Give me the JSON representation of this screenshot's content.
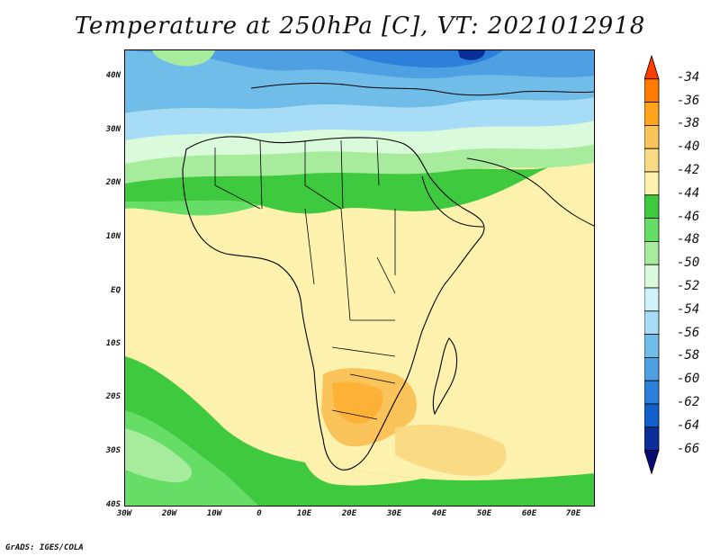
{
  "title": "Temperature at 250hPa [C], VT: 2021012918",
  "credit": "GrADS: IGES/COLA",
  "y_axis_labels": [
    "40N",
    "30N",
    "20N",
    "10N",
    "EQ",
    "10S",
    "20S",
    "30S",
    "40S"
  ],
  "x_axis_labels": [
    "30W",
    "20W",
    "10W",
    "0",
    "10E",
    "20E",
    "30E",
    "40E",
    "50E",
    "60E",
    "70E"
  ],
  "colorbar": {
    "labels": [
      "-34",
      "-36",
      "-38",
      "-40",
      "-42",
      "-44",
      "-46",
      "-48",
      "-50",
      "-52",
      "-54",
      "-56",
      "-58",
      "-60",
      "-62",
      "-64",
      "-66"
    ],
    "colors": [
      "#ff3d00",
      "#ff7a00",
      "#ffa41c",
      "#fbc45a",
      "#f8db84",
      "#fdf2ad",
      "#3ec93e",
      "#66dd66",
      "#a7ec9d",
      "#dafadc",
      "#d0f3fb",
      "#a6dcf5",
      "#71bde9",
      "#4f9fe3",
      "#2c7fda",
      "#1360cc",
      "#0b2e9a",
      "#080c72"
    ]
  },
  "map_colors": {
    "warm_yellow": "#fdf2ad",
    "light_orange": "#f8db84",
    "orange": "#fbc45a",
    "green": "#3ec93e",
    "mid_green": "#66dd66",
    "light_green": "#a7ec9d",
    "pale_cyan": "#dafadc",
    "light_blue": "#a6dcf5",
    "blue": "#71bde9",
    "deep_blue": "#2c7fda",
    "navy": "#0b2e9a"
  }
}
